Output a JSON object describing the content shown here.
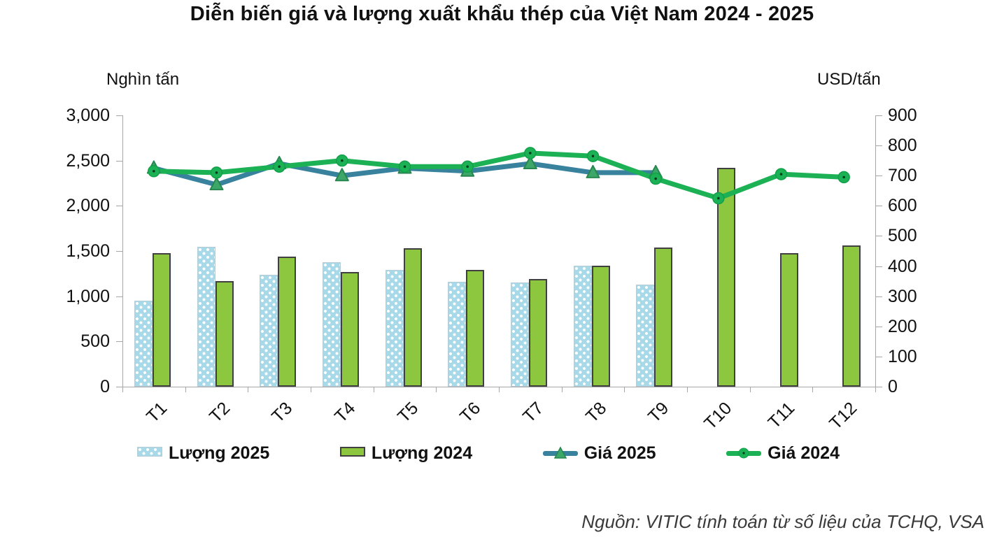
{
  "title": "Diễn biến giá và lượng xuất khẩu thép của Việt Nam 2024 - 2025",
  "axes": {
    "left_unit": "Nghìn tấn",
    "right_unit": "USD/tấn"
  },
  "source_note": "Nguồn: VITIC tính toán từ số liệu của TCHQ, VSA",
  "colors": {
    "bar_2025_fill": "#a8d9e8",
    "bar_2025_dots": "#ffffff",
    "bar_2024_fill": "#8dc63f",
    "bar_2024_border": "#404040",
    "line_2025": "#38829e",
    "line_2024": "#1bb154",
    "marker_2025_fill": "#3ca768",
    "marker_2025_stroke": "#28864f",
    "marker_2024_fill": "#1bb154",
    "marker_2024_stroke": "#12a04a",
    "axis_color": "#a6a6a6",
    "text_color": "#111111"
  },
  "chart_data": {
    "type": "bar",
    "subtype": "combo: clustered columns (left axis) + lines with markers (right axis)",
    "title": "Diễn biến giá và lượng xuất khẩu thép của Việt Nam 2024 - 2025",
    "categories": [
      "T1",
      "T2",
      "T3",
      "T4",
      "T5",
      "T6",
      "T7",
      "T8",
      "T9",
      "T10",
      "T11",
      "T12"
    ],
    "left_axis": {
      "label": "Nghìn tấn",
      "min": 0,
      "max": 3000,
      "step": 500
    },
    "right_axis": {
      "label": "USD/tấn",
      "min": 0,
      "max": 900,
      "step": 100
    },
    "grid": false,
    "legend_position": "bottom",
    "series": [
      {
        "name": "Lượng 2025",
        "kind": "bar",
        "axis": "left",
        "values": [
          950,
          1550,
          1240,
          1380,
          1290,
          1160,
          1150,
          1340,
          1130,
          null,
          null,
          null
        ]
      },
      {
        "name": "Lượng 2024",
        "kind": "bar",
        "axis": "left",
        "values": [
          1480,
          1170,
          1440,
          1270,
          1530,
          1290,
          1190,
          1340,
          1540,
          2420,
          1480,
          1560
        ]
      },
      {
        "name": "Giá 2025",
        "kind": "line",
        "marker": "triangle",
        "axis": "right",
        "values": [
          725,
          670,
          740,
          700,
          725,
          715,
          740,
          710,
          710,
          null,
          null,
          null
        ]
      },
      {
        "name": "Giá 2024",
        "kind": "line",
        "marker": "circle",
        "axis": "right",
        "values": [
          715,
          710,
          730,
          750,
          730,
          730,
          775,
          765,
          690,
          625,
          705,
          695
        ]
      }
    ]
  }
}
